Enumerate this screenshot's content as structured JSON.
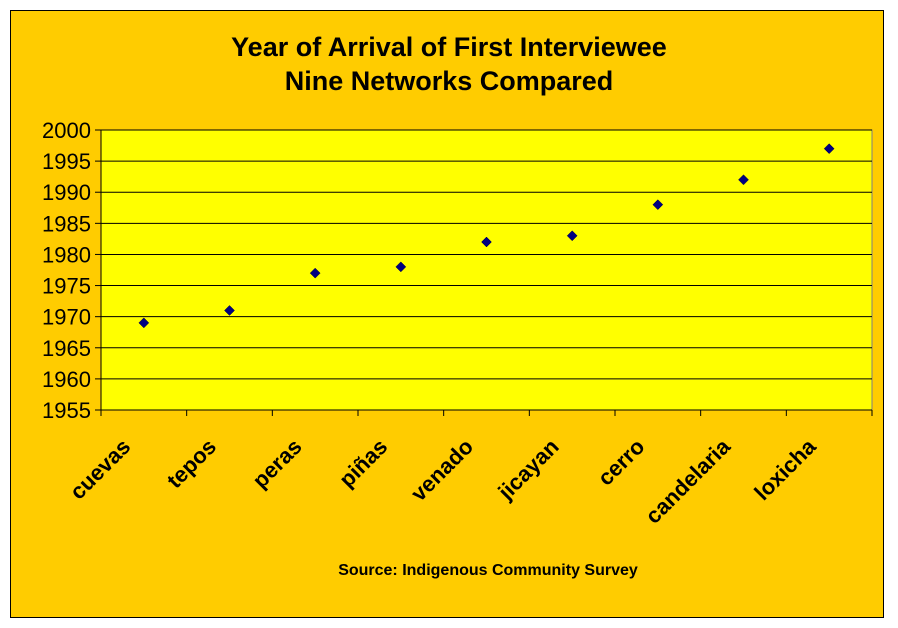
{
  "chart_data": {
    "type": "scatter",
    "title": "Year of Arrival of First Interviewee",
    "subtitle": "Nine Networks Compared",
    "xlabel": "",
    "ylabel": "",
    "categories": [
      "cuevas",
      "tepos",
      "peras",
      "piñas",
      "venado",
      "jicayan",
      "cerro",
      "candelaria",
      "loxicha"
    ],
    "values": [
      1969,
      1971,
      1977,
      1978,
      1982,
      1983,
      1988,
      1992,
      1997
    ],
    "ylim": [
      1955,
      2000
    ],
    "y_ticks": [
      "1955",
      "1960",
      "1965",
      "1970",
      "1975",
      "1980",
      "1985",
      "1990",
      "1995",
      "2000"
    ],
    "grid": true,
    "legend": "none",
    "marker": "diamond",
    "annotation": "Source: Indigenous Community Survey",
    "colors": {
      "background": "#FFCC00",
      "plot_area": "#FFFF00",
      "marker": "#000080",
      "gridline": "#000000"
    }
  }
}
